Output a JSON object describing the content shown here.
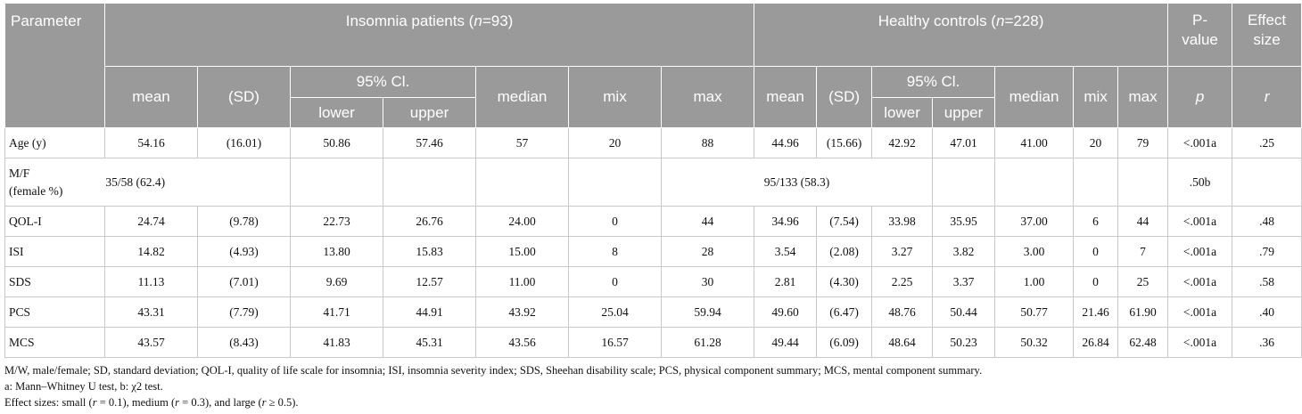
{
  "header": {
    "parameter": "Parameter",
    "insomnia_prefix": "Insomnia patients (",
    "insomnia_n": "n",
    "insomnia_suffix": "=93)",
    "controls_prefix": "Healthy controls (",
    "controls_n": "n",
    "controls_suffix": "=228)",
    "pvalue_line1": "P-",
    "pvalue_line2": "value",
    "effect_line1": "Effect",
    "effect_line2": "size",
    "mean": "mean",
    "sd": "(SD)",
    "ci": "95% Cl.",
    "median": "median",
    "mix": "mix",
    "max": "max",
    "lower": "lower",
    "upper": "upper",
    "p": "p",
    "r": "r"
  },
  "rows": [
    {
      "label": "Age (y)",
      "cells": [
        "54.16",
        "(16.01)",
        "50.86",
        "57.46",
        "57",
        "20",
        "88",
        "44.96",
        "(15.66)",
        "42.92",
        "47.01",
        "41.00",
        "20",
        "79",
        "<.001a",
        ".25"
      ]
    },
    {
      "label": "QOL-I",
      "cells": [
        "24.74",
        "(9.78)",
        "22.73",
        "26.76",
        "24.00",
        "0",
        "44",
        "34.96",
        "(7.54)",
        "33.98",
        "35.95",
        "37.00",
        "6",
        "44",
        "<.001a",
        ".48"
      ]
    },
    {
      "label": "ISI",
      "cells": [
        "14.82",
        "(4.93)",
        "13.80",
        "15.83",
        "15.00",
        "8",
        "28",
        "3.54",
        "(2.08)",
        "3.27",
        "3.82",
        "3.00",
        "0",
        "7",
        "<.001a",
        ".79"
      ]
    },
    {
      "label": "SDS",
      "cells": [
        "11.13",
        "(7.01)",
        "9.69",
        "12.57",
        "11.00",
        "0",
        "30",
        "2.81",
        "(4.30)",
        "2.25",
        "3.37",
        "1.00",
        "0",
        "25",
        "<.001a",
        ".58"
      ]
    },
    {
      "label": "PCS",
      "cells": [
        "43.31",
        "(7.79)",
        "41.71",
        "44.91",
        "43.92",
        "25.04",
        "59.94",
        "49.60",
        "(6.47)",
        "48.76",
        "50.44",
        "50.77",
        "21.46",
        "61.90",
        "<.001a",
        ".40"
      ]
    },
    {
      "label": "MCS",
      "cells": [
        "43.57",
        "(8.43)",
        "41.83",
        "45.31",
        "43.56",
        "16.57",
        "61.28",
        "49.44",
        "(6.09)",
        "48.64",
        "50.23",
        "50.32",
        "26.84",
        "62.48",
        "<.001a",
        ".36"
      ]
    }
  ],
  "mf_row": {
    "label_line1": "M/F",
    "label_line2": "(female %)",
    "insomnia": "35/58 (62.4)",
    "controls": "95/133 (58.3)",
    "p": ".50b"
  },
  "notes": {
    "line1": "M/W, male/female; SD, standard deviation; QOL-I, quality of life scale for insomnia; ISI, insomnia severity index; SDS, Sheehan disability scale; PCS, physical component summary; MCS, mental component summary.",
    "line2": "a: Mann–Whitney U test, b: χ2 test.",
    "line3_a": "Effect sizes: small (",
    "line3_r1": "r",
    "line3_b": " = 0.1), medium (",
    "line3_r2": "r",
    "line3_c": " = 0.3), and large (",
    "line3_r3": "r",
    "line3_d": " ≥ 0.5)."
  }
}
